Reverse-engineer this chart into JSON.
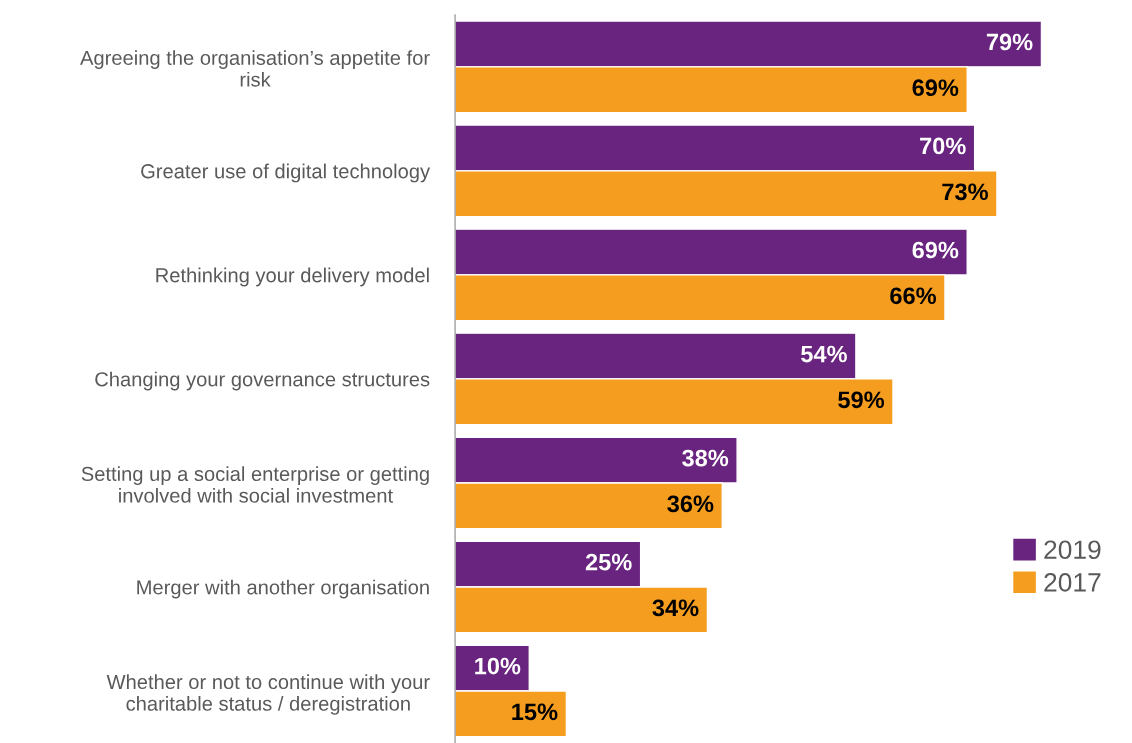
{
  "chart_data": {
    "type": "bar",
    "orientation": "horizontal",
    "tick_labels": "y",
    "legend": "right",
    "grid": false,
    "categories": [
      "Agreeing the organisation’s appetite for\nrisk",
      "Greater use of digital technology",
      "Rethinking your delivery model",
      "Changing your governance structures",
      "Setting up a social enterprise or getting\ninvolved with social investment",
      "Merger with another organisation",
      "Whether or not to continue with your\ncharitable status / deregistration"
    ],
    "series": [
      {
        "name": "2019",
        "color": "#68247f",
        "values": [
          79,
          70,
          69,
          54,
          38,
          25,
          10
        ],
        "value_labels": [
          "79%",
          "70%",
          "69%",
          "54%",
          "38%",
          "25%",
          "10%"
        ]
      },
      {
        "name": "2017",
        "color": "#f59d1e",
        "values": [
          69,
          73,
          66,
          59,
          36,
          34,
          15
        ],
        "value_labels": [
          "69%",
          "73%",
          "66%",
          "59%",
          "36%",
          "34%",
          "15%"
        ]
      }
    ]
  }
}
